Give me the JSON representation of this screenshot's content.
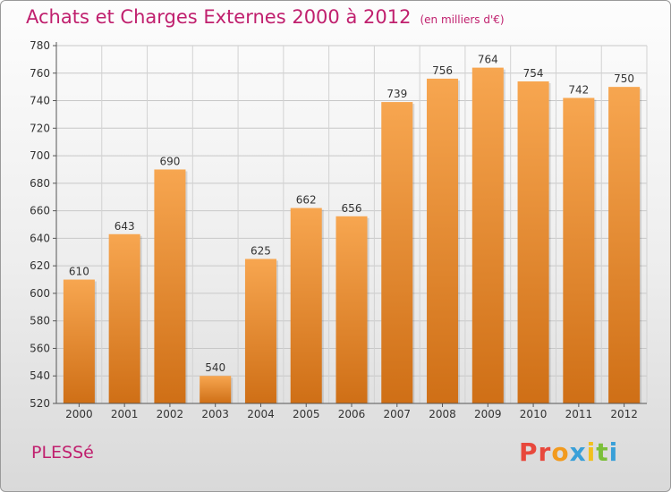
{
  "header": {
    "title": "Achats et Charges Externes 2000 à 2012",
    "unit": "(en milliers d'€)"
  },
  "footer": {
    "commune": "PLESSé",
    "logo_text": "Proxiti",
    "logo_colors": [
      "#e8483c",
      "#e8483c",
      "#f29a1e",
      "#3aa0d8",
      "#f2c01e",
      "#7cbf3a",
      "#3aa0d8"
    ]
  },
  "chart_data": {
    "type": "bar",
    "categories": [
      "2000",
      "2001",
      "2002",
      "2003",
      "2004",
      "2005",
      "2006",
      "2007",
      "2008",
      "2009",
      "2010",
      "2011",
      "2012"
    ],
    "values": [
      610,
      643,
      690,
      540,
      625,
      662,
      656,
      739,
      756,
      764,
      754,
      742,
      750
    ],
    "ylim": [
      520,
      780
    ],
    "yticks": [
      520,
      540,
      560,
      580,
      600,
      620,
      640,
      660,
      680,
      700,
      720,
      740,
      760,
      780
    ],
    "grid": true,
    "bar_color": "#f0983e",
    "bar_color_dark": "#c96a14",
    "title": "Achats et Charges Externes 2000 à 2012",
    "xlabel": "",
    "ylabel": ""
  }
}
